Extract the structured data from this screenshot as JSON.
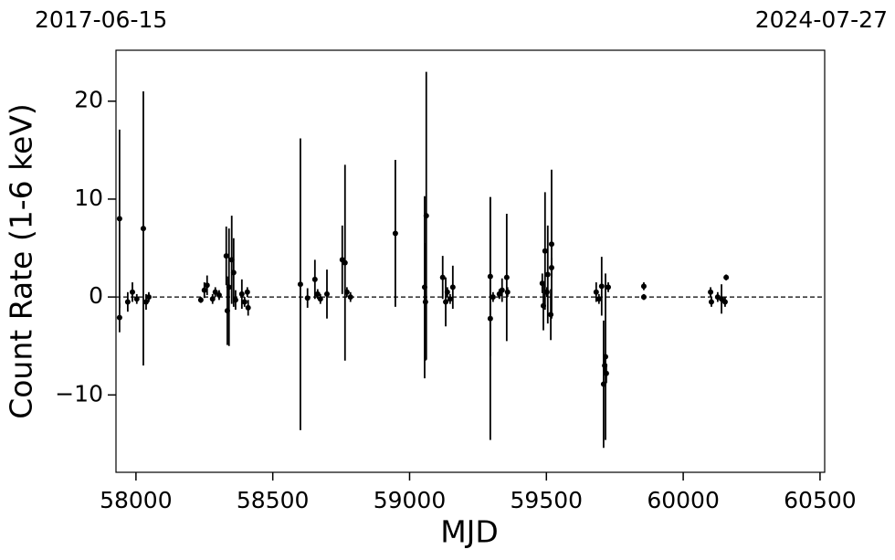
{
  "chart_data": {
    "type": "errorbar-scatter",
    "top_left_label": "2017-06-15",
    "top_right_label": "2024-07-27",
    "xlabel": "MJD",
    "ylabel": "Count Rate (1-6 keV)",
    "xlim": [
      57927,
      60517
    ],
    "ylim": [
      -17.9,
      25.2
    ],
    "xticks": [
      58000,
      58500,
      59000,
      59500,
      60000,
      60500
    ],
    "yticks": [
      {
        "value": -10,
        "label": "−10"
      },
      0,
      10,
      20
    ],
    "hline": 0,
    "color": "#000000",
    "series": [
      {
        "name": "data",
        "color": "#000000",
        "x": [
          57940,
          57940,
          57970,
          57987,
          58003,
          58027,
          58037,
          58047,
          58237,
          58250,
          58260,
          58280,
          58290,
          58304,
          58330,
          58334,
          58340,
          58350,
          58357,
          58364,
          58387,
          58397,
          58407,
          58410,
          58601,
          58627,
          58654,
          58664,
          58674,
          58698,
          58754,
          58764,
          58771,
          58784,
          58948,
          59055,
          59061,
          59058,
          59121,
          59132,
          59138,
          59148,
          59158,
          59295,
          59295,
          59305,
          59328,
          59338,
          59355,
          59358,
          59485,
          59489,
          59495,
          59502,
          59505,
          59516,
          59519,
          59519,
          59682,
          59692,
          59702,
          59709,
          59713,
          59716,
          59719,
          59726,
          59856,
          59856,
          60100,
          60103,
          60126,
          60140,
          60153,
          60157
        ],
        "values": [
          8.0,
          -2.1,
          -0.5,
          0.5,
          -0.2,
          7.0,
          -0.5,
          0,
          -0.3,
          0.7,
          1.2,
          -0.2,
          0.5,
          0.2,
          4.2,
          -1.4,
          1.0,
          3.8,
          2.5,
          -0.3,
          0.3,
          -0.5,
          0.5,
          -1.1,
          1.3,
          -0.1,
          1.8,
          0.3,
          -0.2,
          0.3,
          3.8,
          3.5,
          0.5,
          0,
          6.5,
          1.0,
          8.3,
          -0.5,
          2.0,
          -0.5,
          0.5,
          -0.2,
          1.0,
          2.1,
          -2.2,
          0,
          0.3,
          0.7,
          2.0,
          0.5,
          1.4,
          -0.9,
          4.7,
          0.5,
          2.3,
          -1.8,
          5.4,
          3.0,
          0.5,
          -0.2,
          1.1,
          -8.9,
          -7.0,
          -6.1,
          -7.8,
          1.0,
          1.1,
          0,
          0.5,
          -0.5,
          0,
          -0.2,
          -0.5,
          2.0
        ],
        "errors": [
          9.1,
          1.5,
          1,
          1,
          0.5,
          14,
          0.8,
          0.5,
          0.3,
          0.8,
          1,
          0.5,
          0.5,
          0.5,
          3,
          3.5,
          6,
          4.5,
          3.5,
          1,
          1.5,
          0.5,
          0.5,
          0.8,
          14.9,
          1,
          2,
          0.5,
          0.5,
          2.5,
          3.5,
          10,
          0.5,
          0.5,
          7.5,
          9.3,
          14.7,
          6,
          2.2,
          2.5,
          0.5,
          0.5,
          2.2,
          8.1,
          12.4,
          0.5,
          0.5,
          1.2,
          6.5,
          0.5,
          1,
          2.5,
          6,
          0.5,
          5,
          2.6,
          7.6,
          1,
          1,
          0.5,
          3,
          6.5,
          1,
          8.5,
          1,
          0.5,
          0.4,
          0.3,
          0.5,
          0.5,
          0.5,
          1.5,
          0.5,
          0.3
        ]
      }
    ]
  }
}
